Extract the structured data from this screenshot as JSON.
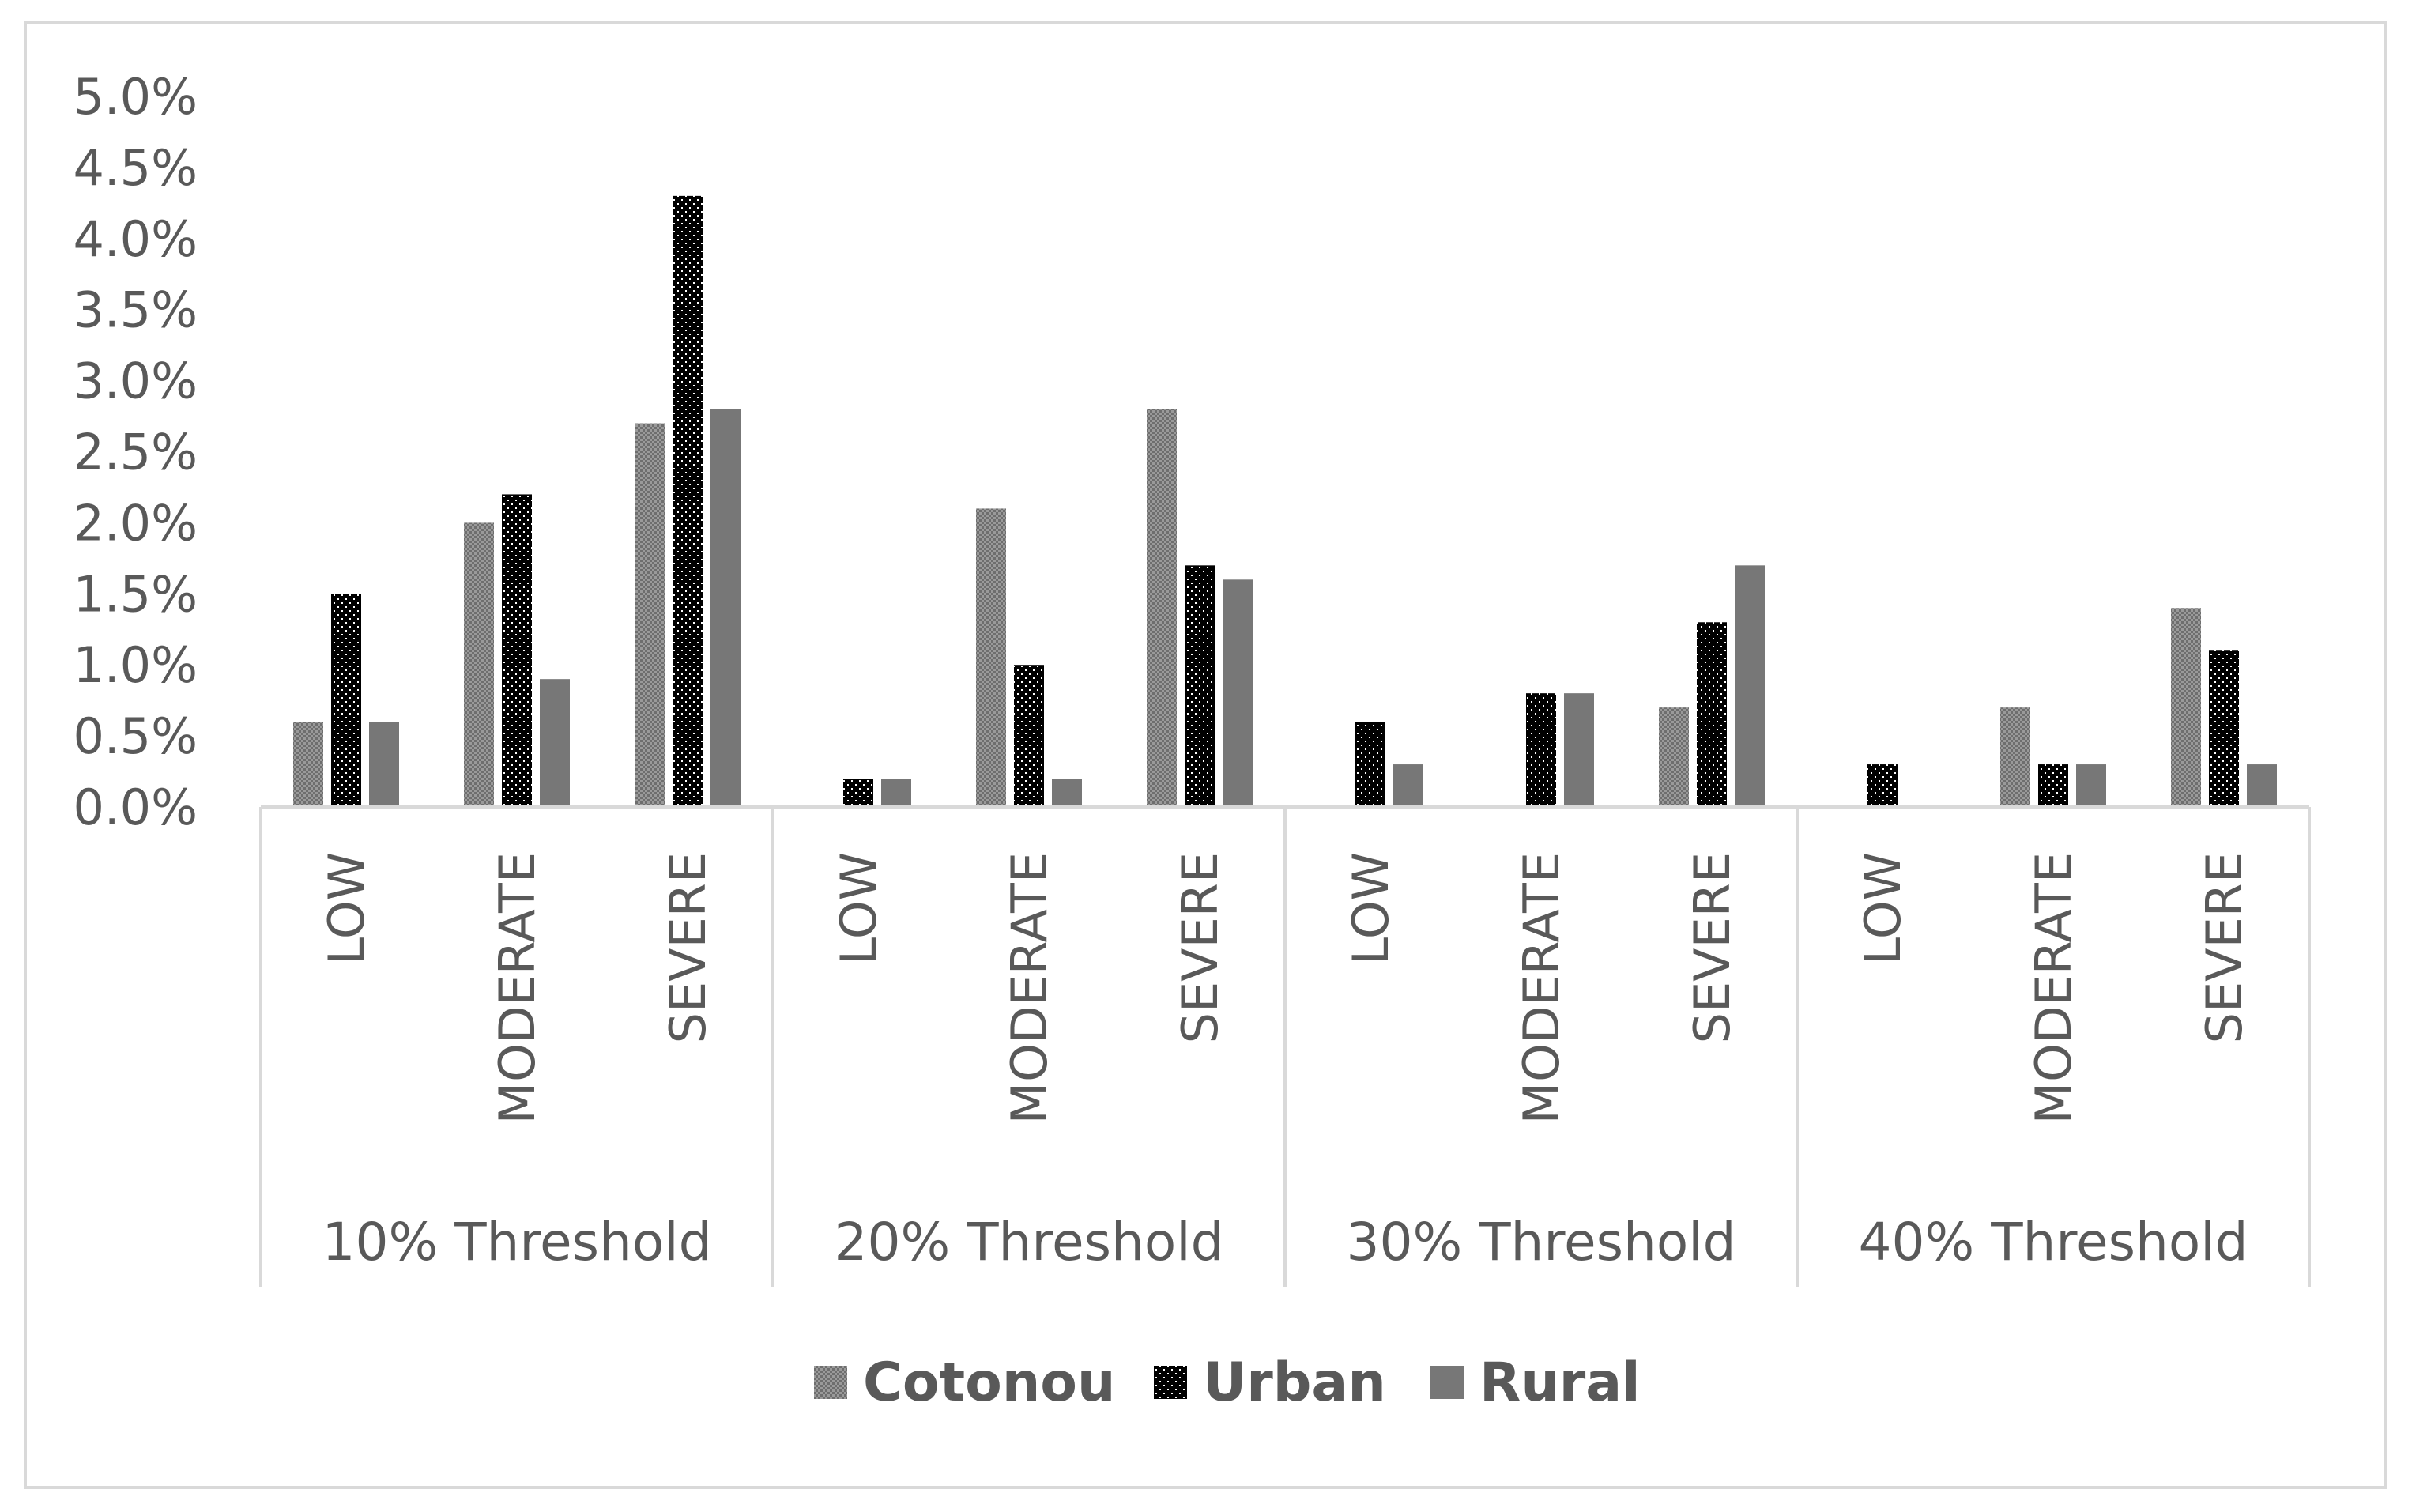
{
  "chart_data": {
    "type": "bar",
    "title": "",
    "xlabel": "",
    "ylabel": "",
    "ylim": [
      0,
      5.0
    ],
    "yticks": [
      "0.0%",
      "0.5%",
      "1.0%",
      "1.5%",
      "2.0%",
      "2.5%",
      "3.0%",
      "3.5%",
      "4.0%",
      "4.5%",
      "5.0%"
    ],
    "grid": false,
    "legend_position": "bottom",
    "groups": [
      {
        "label": "10% Threshold",
        "categories": [
          "LOW",
          "MODERATE",
          "SEVERE"
        ]
      },
      {
        "label": "20% Threshold",
        "categories": [
          "LOW",
          "MODERATE",
          "SEVERE"
        ]
      },
      {
        "label": "30% Threshold",
        "categories": [
          "LOW",
          "MODERATE",
          "SEVERE"
        ]
      },
      {
        "label": "40% Threshold",
        "categories": [
          "LOW",
          "MODERATE",
          "SEVERE"
        ]
      }
    ],
    "series": [
      {
        "name": "Cotonou",
        "color": "#8c8c8c",
        "pattern": "fine-dot",
        "values": [
          0.6,
          2.0,
          2.7,
          0.0,
          2.1,
          2.8,
          0.0,
          0.0,
          0.7,
          0.0,
          0.7,
          1.4
        ]
      },
      {
        "name": "Urban",
        "color": "#000000",
        "pattern": "sparse-dot",
        "values": [
          1.5,
          2.2,
          4.3,
          0.2,
          1.0,
          1.7,
          0.6,
          0.8,
          1.3,
          0.3,
          0.3,
          1.1
        ]
      },
      {
        "name": "Rural",
        "color": "#777777",
        "pattern": "solid",
        "values": [
          0.6,
          0.9,
          2.8,
          0.2,
          0.2,
          1.6,
          0.3,
          0.8,
          1.7,
          0.0,
          0.3,
          0.3
        ]
      }
    ]
  }
}
